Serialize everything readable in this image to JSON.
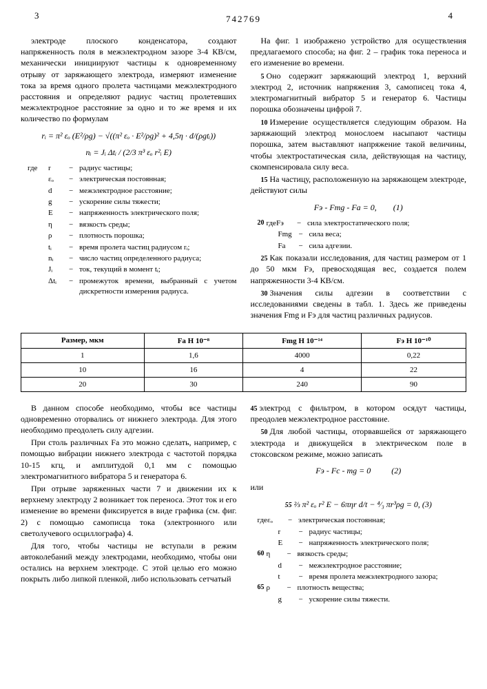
{
  "header": {
    "page_left": "3",
    "page_right": "4",
    "doc_number": "742769"
  },
  "col_left": {
    "para1": "электроде плоского конденсатора, создают напряженность поля в межэлектродном зазоре 3-4 КВ/см, механически инициируют частицы к одновременному отрыву от заряжающего электрода, измеряют изменение тока за время одного пролета частицами межэлектродного расстояния и определяют радиус частиц пролетевших межэлектродное расстояние за одно и то же время и их количество по формулам",
    "formula1": "rᵢ = π² εₒ (E²/ρg) − √((π² εₒ · E²/ρg)² + 4,5η · d/(ρgtᵢ))",
    "formula2": "nᵢ = Jᵢ Δtᵢ / (2/3 π³ εₒ r²ᵢ E)",
    "where_intro": "где",
    "where": [
      {
        "sym": "r",
        "def": "радиус частицы;"
      },
      {
        "sym": "εₒ",
        "def": "электрическая постоянная;"
      },
      {
        "sym": "d",
        "def": "межэлектродное расстояние;"
      },
      {
        "sym": "g",
        "def": "ускорение силы тяжести;"
      },
      {
        "sym": "E",
        "def": "напряженность электрического поля;"
      },
      {
        "sym": "η",
        "def": "вязкость среды;"
      },
      {
        "sym": "ρ",
        "def": "плотность порошка;"
      },
      {
        "sym": "tᵢ",
        "def": "время пролета частиц радиусом rᵢ;"
      },
      {
        "sym": "nᵢ",
        "def": "число частиц определенного радиуса;"
      },
      {
        "sym": "Jᵢ",
        "def": "ток, текущий в момент tᵢ;"
      },
      {
        "sym": "Δtᵢ",
        "def": "промежуток времени, выбранный с учетом дискретности измерения радиуса."
      }
    ]
  },
  "col_right": {
    "para1": "На фиг. 1 изображено устройство для осуществления предлагаемого способа; на фиг. 2 – график тока переноса и его изменение во времени.",
    "para2": "Оно содержит заряжающий электрод 1, верхний электрод 2, источник напряжения 3, самописец тока 4, электромагнитный вибратор 5 и генератор 6. Частицы порошка обозначены цифрой 7.",
    "para3": "Измерение осуществляется следующим образом. На заряжающий электрод монослоем насыпают частицы порошка, затем выставляют напряжение такой величины, чтобы электростатическая сила, действующая на частицу, скомпенсировала силу веса.",
    "para4": "На частицу, расположенную на заряжающем электроде, действуют силы",
    "formula1": "Fэ - Fmg - Fа = 0,",
    "eq1num": "(1)",
    "where_intro": "где",
    "where": [
      {
        "sym": "Fэ",
        "def": "сила электростатического поля;"
      },
      {
        "sym": "Fmg",
        "def": "сила веса;"
      },
      {
        "sym": "Fа",
        "def": "сила адгезии."
      }
    ],
    "para5": "Как показали исследования, для частиц размером от 1 до 50 мкм Fэ, превосходящая вес, создается полем напряженности 3-4 КВ/см.",
    "para6": "Значения силы адгезии в соответствии с исследованиями сведены в табл. 1. Здесь же приведены значения Fmg и Fэ для частиц различных радиусов."
  },
  "table": {
    "headers": [
      "Размер, мкм",
      "Fа Н 10⁻⁸",
      "Fmg Н 10⁻¹⁴",
      "Fэ Н 10⁻¹⁰"
    ],
    "rows": [
      [
        "1",
        "1,6",
        "4000",
        "0,22"
      ],
      [
        "10",
        "16",
        "4",
        "22"
      ],
      [
        "20",
        "30",
        "240",
        "90"
      ]
    ]
  },
  "bottom_left": {
    "para1": "В данном способе необходимо, чтобы все частицы одновременно оторвались от нижнего электрода. Для этого необходимо преодолеть силу адгезии.",
    "para2": "При столь различных Fа это можно сделать, например, с помощью вибрации нижнего электрода с частотой порядка 10-15 кгц, и амплитудой 0,1 мм с помощью электромагнитного вибратора 5 и генератора 6.",
    "para3": "При отрыве заряженных части 7 и движении их к верхнему электроду 2 возникает ток переноса. Этот ток и его изменение во времени фиксируется в виде графика (см. фиг. 2) с помощью самописца тока (электронного или светолучевого осциллографа) 4.",
    "para4": "Для того, чтобы частицы не вступали в режим автоколебаний между электродами, необходимо, чтобы они остались на верхнем электроде. С этой целью его можно покрыть либо липкой пленкой, либо использовать сетчатый"
  },
  "bottom_right": {
    "para1": "электрод с фильтром, в котором осядут частицы, преодолев межэлектродное расстояние.",
    "para2": "Для любой частицы, оторвавшейся от заряжающего электрода и движущейся в электрическом поле в стоксовском режиме, можно записать",
    "formula1": "Fэ - Fс - mg = 0",
    "eq1num": "(2)",
    "or": "или",
    "formula2": "⅔ π² εₒ r² E − 6πηr d/t − ⁴⁄₃ πr³ρg = 0,",
    "eq2num": "(3)",
    "where_intro": "где",
    "where": [
      {
        "sym": "εₒ",
        "def": "электрическая постоянная;"
      },
      {
        "sym": "r",
        "def": "радиус частицы;"
      },
      {
        "sym": "E",
        "def": "напряженность электрического поля;"
      },
      {
        "sym": "η",
        "def": "вязкость среды;"
      },
      {
        "sym": "d",
        "def": "межэлектродное расстояние;"
      },
      {
        "sym": "t",
        "def": "время пролета межэлектродного зазора;"
      },
      {
        "sym": "ρ",
        "def": "плотность вещества;"
      },
      {
        "sym": "g",
        "def": "ускорение силы тяжести."
      }
    ]
  },
  "markers": {
    "m5": "5",
    "m10": "10",
    "m15": "15",
    "m20": "20",
    "m25": "25",
    "m30": "30",
    "m45": "45",
    "m50": "50",
    "m55": "55",
    "m60": "60",
    "m65": "65"
  }
}
